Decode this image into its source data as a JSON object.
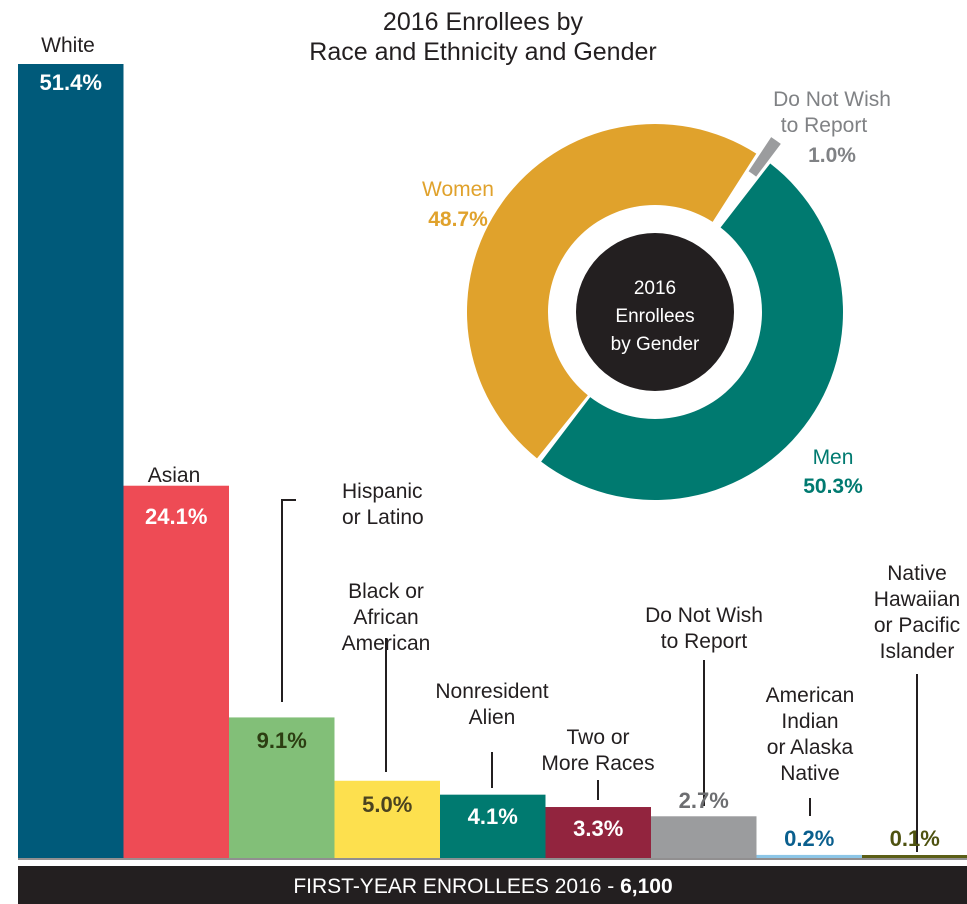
{
  "chart_data": [
    {
      "type": "bar",
      "title_lines": [
        "2016 Enrollees by",
        "Race and Ethnicity and Gender"
      ],
      "categories": [
        [
          "White"
        ],
        [
          "Asian"
        ],
        [
          "Hispanic",
          "or Latino"
        ],
        [
          "Black or",
          "African",
          "American"
        ],
        [
          "Nonresident",
          "Alien"
        ],
        [
          "Two or",
          "More Races"
        ],
        [
          "Do Not Wish",
          "to Report"
        ],
        [
          "American",
          "Indian",
          "or Alaska",
          "Native"
        ],
        [
          "Native",
          "Hawaiian",
          "or Pacific",
          "Islander"
        ]
      ],
      "values": [
        51.4,
        24.1,
        9.1,
        5.0,
        4.1,
        3.3,
        2.7,
        0.2,
        0.1
      ],
      "value_labels": [
        "51.4%",
        "24.1%",
        "9.1%",
        "5.0%",
        "4.1%",
        "3.3%",
        "2.7%",
        "0.2%",
        "0.1%"
      ],
      "colors": [
        "#005a7a",
        "#ee4b55",
        "#82bf78",
        "#fde04e",
        "#007a70",
        "#92243e",
        "#9b9c9e",
        "#8cc6e7",
        "#5b5e16"
      ],
      "value_colors": [
        "#ffffff",
        "#ffffff",
        "#2c3e12",
        "#4a4320",
        "#ffffff",
        "#ffffff",
        "#6d6e71",
        "#0a5f8e",
        "#4e5210"
      ],
      "footer_text": "FIRST-YEAR ENROLLEES 2016 - ",
      "footer_total": "6,100"
    },
    {
      "type": "pie",
      "center_lines": [
        "2016",
        "Enrollees",
        "by Gender"
      ],
      "slices": [
        {
          "label": "Men",
          "value": 50.3,
          "value_label": "50.3%",
          "color": "#007a70"
        },
        {
          "label": "Women",
          "value": 48.7,
          "value_label": "48.7%",
          "color": "#e0a22c"
        },
        {
          "label_lines": [
            "Do Not Wish",
            "to Report"
          ],
          "value": 1.0,
          "value_label": "1.0%",
          "color": "#9b9c9e"
        }
      ]
    }
  ]
}
